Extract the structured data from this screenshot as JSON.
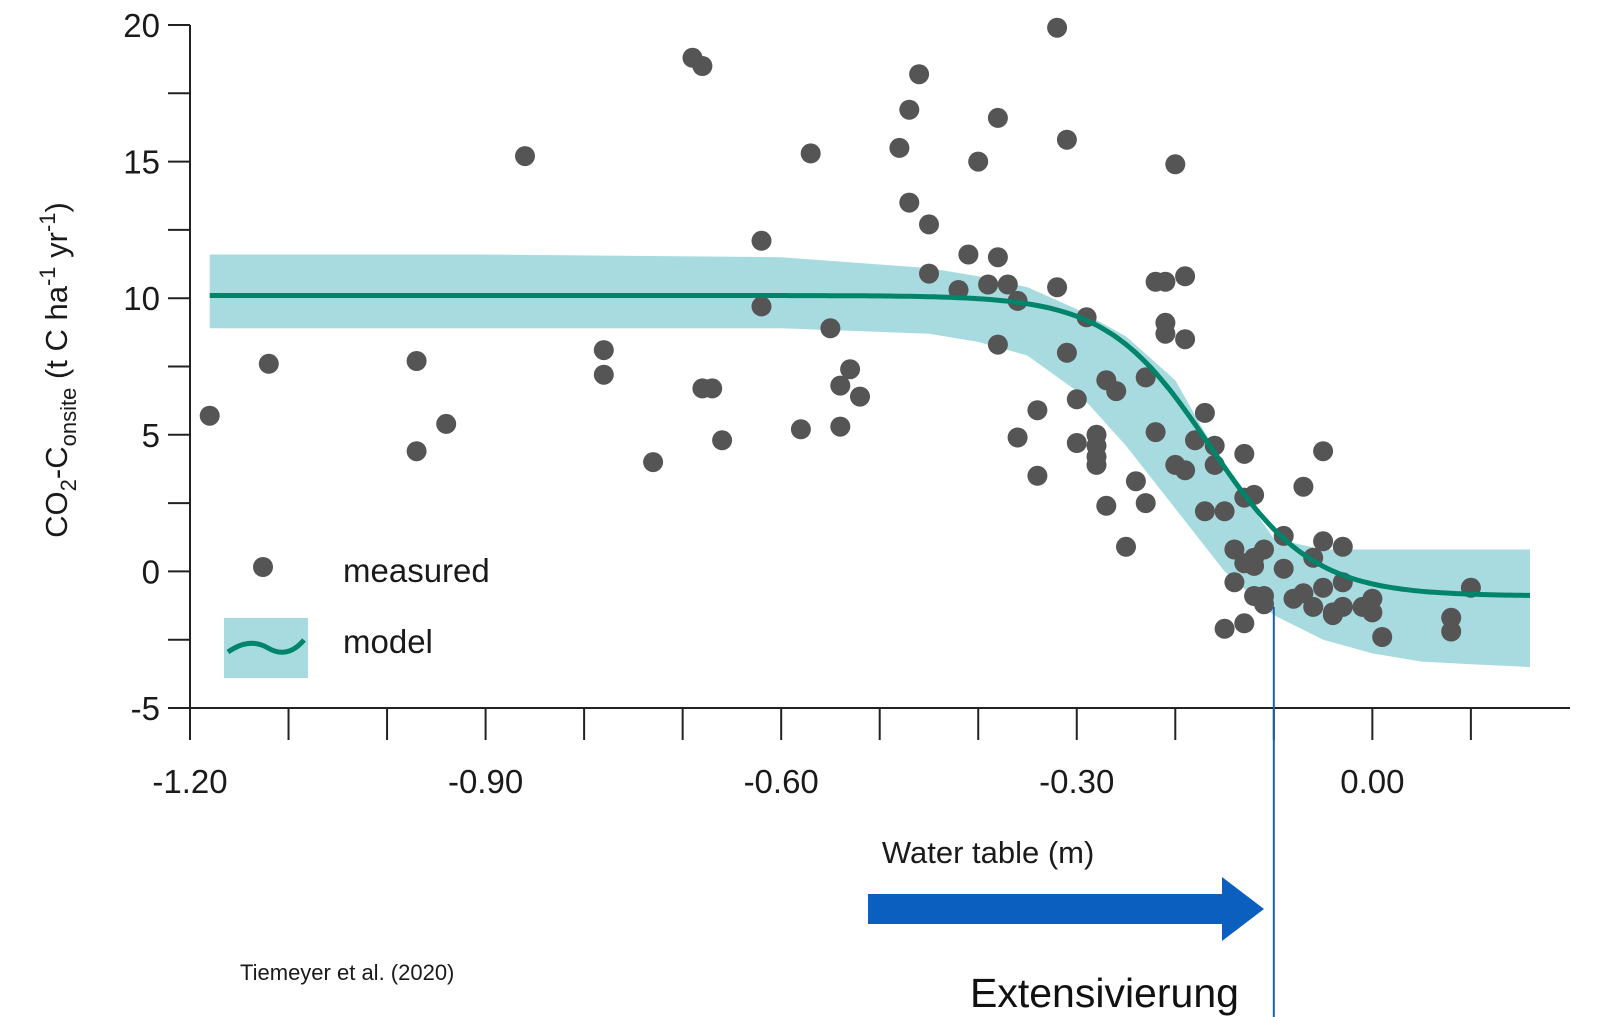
{
  "chart_data": {
    "type": "scatter",
    "xlabel": "Water table (m)",
    "ylabel_parts": {
      "a": "CO",
      "a_sub": "2",
      "b": "-C",
      "b_sub": "onsite",
      "c": " (t C ha",
      "c_sup": "-1",
      "d": " yr",
      "d_sup": "-1",
      "e": ")"
    },
    "xlim": [
      -1.2,
      0.16
    ],
    "ylim": [
      -5,
      20
    ],
    "x_ticks": [
      {
        "value": -1.2,
        "label": "-1.20"
      },
      {
        "value": -0.9,
        "label": "-0.90"
      },
      {
        "value": -0.6,
        "label": "-0.60"
      },
      {
        "value": -0.3,
        "label": "-0.30"
      },
      {
        "value": 0.0,
        "label": "0.00"
      }
    ],
    "x_minor_ticks": [
      -1.1,
      -1.0,
      -0.8,
      -0.7,
      -0.5,
      -0.4,
      -0.2,
      -0.1,
      0.1
    ],
    "y_ticks": [
      {
        "value": -5,
        "label": "-5"
      },
      {
        "value": 0,
        "label": "0"
      },
      {
        "value": 5,
        "label": "5"
      },
      {
        "value": 10,
        "label": "10"
      },
      {
        "value": 15,
        "label": "15"
      },
      {
        "value": 20,
        "label": "20"
      }
    ],
    "y_minor_ticks": [
      -2.5,
      2.5,
      7.5,
      12.5,
      17.5
    ],
    "legend": {
      "position": "bottom-left",
      "measured_label": "measured",
      "model_label": "model"
    },
    "model": {
      "name": "model",
      "curve": {
        "upper": 10.1,
        "lower": -0.9,
        "midpoint": -0.165,
        "steepness": 0.052
      },
      "band": {
        "x": [
          -1.18,
          -0.9,
          -0.6,
          -0.45,
          -0.4,
          -0.35,
          -0.3,
          -0.25,
          -0.2,
          -0.15,
          -0.1,
          -0.05,
          0.0,
          0.05,
          0.1,
          0.16
        ],
        "upper": [
          11.6,
          11.6,
          11.5,
          11.1,
          10.8,
          10.4,
          9.6,
          8.6,
          7.0,
          3.8,
          1.2,
          0.8,
          0.8,
          0.8,
          0.8,
          0.8
        ],
        "lower": [
          8.9,
          8.9,
          8.9,
          8.7,
          8.4,
          7.9,
          6.6,
          4.6,
          2.3,
          0.0,
          -1.6,
          -2.5,
          -3.0,
          -3.3,
          -3.4,
          -3.5
        ]
      },
      "color": "#00856a",
      "band_color": "#a8dbe0"
    },
    "series": [
      {
        "name": "measured",
        "color": "#555555",
        "points": [
          [
            -1.18,
            5.7
          ],
          [
            -1.12,
            7.6
          ],
          [
            -0.97,
            7.7
          ],
          [
            -0.97,
            4.4
          ],
          [
            -0.94,
            5.4
          ],
          [
            -0.86,
            15.2
          ],
          [
            -0.78,
            8.1
          ],
          [
            -0.78,
            7.2
          ],
          [
            -0.73,
            4.0
          ],
          [
            -0.69,
            18.8
          ],
          [
            -0.68,
            18.5
          ],
          [
            -0.68,
            6.7
          ],
          [
            -0.67,
            6.7
          ],
          [
            -0.66,
            4.8
          ],
          [
            -0.62,
            12.1
          ],
          [
            -0.62,
            9.7
          ],
          [
            -0.58,
            5.2
          ],
          [
            -0.57,
            15.3
          ],
          [
            -0.55,
            8.9
          ],
          [
            -0.54,
            6.8
          ],
          [
            -0.53,
            7.4
          ],
          [
            -0.54,
            5.3
          ],
          [
            -0.52,
            6.4
          ],
          [
            -0.48,
            15.5
          ],
          [
            -0.47,
            16.9
          ],
          [
            -0.47,
            13.5
          ],
          [
            -0.46,
            18.2
          ],
          [
            -0.45,
            12.7
          ],
          [
            -0.45,
            10.9
          ],
          [
            -0.42,
            10.3
          ],
          [
            -0.41,
            11.6
          ],
          [
            -0.4,
            15.0
          ],
          [
            -0.39,
            10.5
          ],
          [
            -0.38,
            11.5
          ],
          [
            -0.38,
            16.6
          ],
          [
            -0.38,
            8.3
          ],
          [
            -0.37,
            10.5
          ],
          [
            -0.36,
            9.9
          ],
          [
            -0.36,
            4.9
          ],
          [
            -0.34,
            5.9
          ],
          [
            -0.34,
            3.5
          ],
          [
            -0.32,
            10.4
          ],
          [
            -0.32,
            19.9
          ],
          [
            -0.31,
            15.8
          ],
          [
            -0.31,
            8.0
          ],
          [
            -0.3,
            6.3
          ],
          [
            -0.3,
            4.7
          ],
          [
            -0.29,
            9.3
          ],
          [
            -0.28,
            5.0
          ],
          [
            -0.28,
            4.6
          ],
          [
            -0.28,
            4.2
          ],
          [
            -0.28,
            3.9
          ],
          [
            -0.27,
            7.0
          ],
          [
            -0.27,
            2.4
          ],
          [
            -0.26,
            6.6
          ],
          [
            -0.25,
            0.9
          ],
          [
            -0.24,
            3.3
          ],
          [
            -0.23,
            2.5
          ],
          [
            -0.23,
            7.1
          ],
          [
            -0.22,
            10.6
          ],
          [
            -0.22,
            5.1
          ],
          [
            -0.21,
            10.6
          ],
          [
            -0.21,
            9.1
          ],
          [
            -0.21,
            8.7
          ],
          [
            -0.2,
            14.9
          ],
          [
            -0.2,
            3.9
          ],
          [
            -0.19,
            10.8
          ],
          [
            -0.19,
            8.5
          ],
          [
            -0.19,
            3.7
          ],
          [
            -0.18,
            4.8
          ],
          [
            -0.17,
            5.8
          ],
          [
            -0.17,
            2.2
          ],
          [
            -0.16,
            4.6
          ],
          [
            -0.16,
            3.9
          ],
          [
            -0.15,
            -2.1
          ],
          [
            -0.15,
            2.2
          ],
          [
            -0.14,
            -0.4
          ],
          [
            -0.14,
            0.8
          ],
          [
            -0.13,
            4.3
          ],
          [
            -0.13,
            2.7
          ],
          [
            -0.13,
            0.3
          ],
          [
            -0.13,
            -1.9
          ],
          [
            -0.12,
            2.8
          ],
          [
            -0.12,
            0.5
          ],
          [
            -0.12,
            0.2
          ],
          [
            -0.12,
            -0.9
          ],
          [
            -0.11,
            -1.2
          ],
          [
            -0.11,
            0.8
          ],
          [
            -0.11,
            -0.9
          ],
          [
            -0.09,
            1.3
          ],
          [
            -0.09,
            0.1
          ],
          [
            -0.08,
            -1.0
          ],
          [
            -0.07,
            3.1
          ],
          [
            -0.07,
            -0.8
          ],
          [
            -0.06,
            0.5
          ],
          [
            -0.06,
            -1.3
          ],
          [
            -0.05,
            4.4
          ],
          [
            -0.05,
            1.1
          ],
          [
            -0.05,
            -0.6
          ],
          [
            -0.04,
            -1.6
          ],
          [
            -0.04,
            -1.5
          ],
          [
            -0.03,
            0.9
          ],
          [
            -0.03,
            -0.4
          ],
          [
            -0.03,
            -1.3
          ],
          [
            -0.01,
            -1.3
          ],
          [
            0.0,
            -1.0
          ],
          [
            0.0,
            -1.5
          ],
          [
            0.01,
            -2.4
          ],
          [
            0.08,
            -1.7
          ],
          [
            0.08,
            -2.2
          ],
          [
            0.1,
            -0.6
          ]
        ]
      }
    ],
    "annotations": {
      "source": "Tiemeyer et al. (2020)",
      "arrow_label": "Extensivierung",
      "arrow_color": "#0a5fbf",
      "vline_x": -0.1,
      "vline_color": "#1f5fa8"
    }
  }
}
